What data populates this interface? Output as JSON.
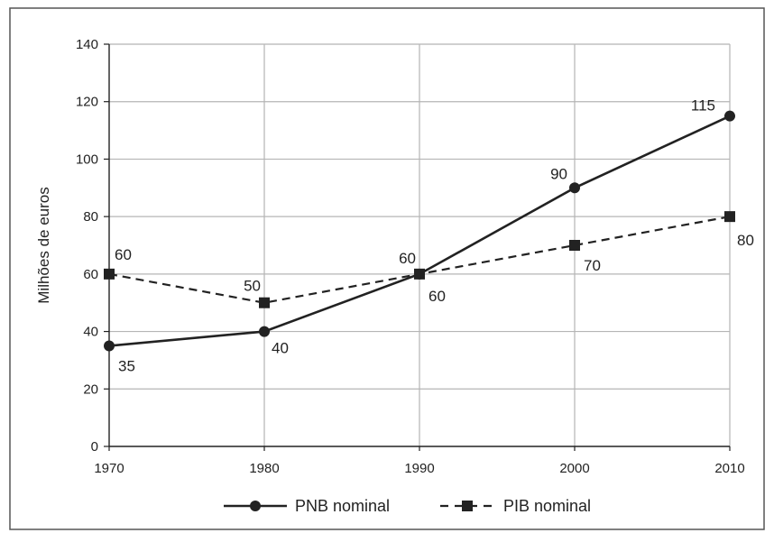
{
  "chart_data": {
    "type": "line",
    "title": "",
    "xlabel": "",
    "ylabel": "Milhões de euros",
    "x": [
      1970,
      1980,
      1990,
      2000,
      2010
    ],
    "xlim": [
      1970,
      2010
    ],
    "ylim": [
      0,
      140
    ],
    "yticks": [
      0,
      20,
      40,
      60,
      80,
      100,
      120,
      140
    ],
    "grid": true,
    "legend_position": "bottom",
    "series": [
      {
        "name": "PNB nominal",
        "values": [
          35,
          40,
          60,
          90,
          115
        ],
        "labels": [
          "35",
          "40",
          "60",
          "90",
          "115"
        ],
        "marker": "circle",
        "line_style": "solid",
        "color": "#222222"
      },
      {
        "name": "PIB nominal",
        "values": [
          60,
          50,
          60,
          70,
          80
        ],
        "labels": [
          "60",
          "50",
          "60",
          "70",
          "80"
        ],
        "marker": "square",
        "line_style": "dashed",
        "color": "#222222"
      }
    ],
    "colors": {
      "grid": "#b5b5b5",
      "frame": "#555555",
      "ink": "#222222"
    }
  }
}
